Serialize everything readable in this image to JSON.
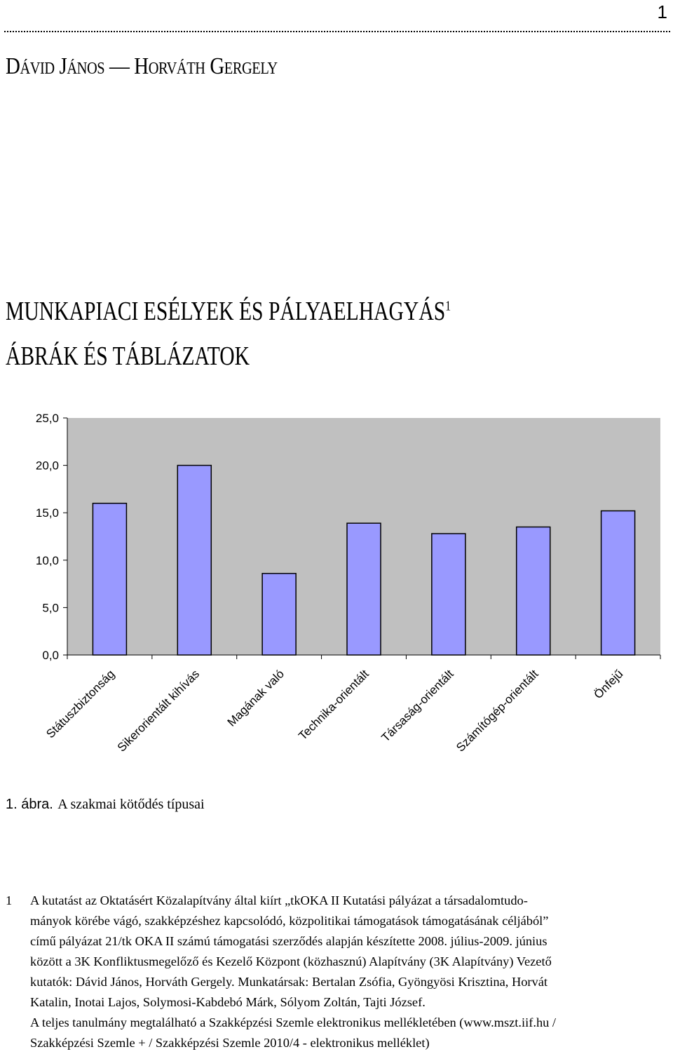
{
  "page": {
    "number": "1"
  },
  "header": {
    "authors": "Dávid János — Horváth Gergely"
  },
  "title": {
    "main": "Munkapiaci esélyek és pályaelhagyás",
    "footnote_ref": "1",
    "subtitle": "ÁBRÁK ÉS TÁBLÁZATOK"
  },
  "chart_data": {
    "type": "bar",
    "title": "",
    "categories": [
      "Státuszbiztonság",
      "Sikerorientált kihívás",
      "Magának való",
      "Technika-orientált",
      "Társaság-orientált",
      "Számítógép-orientált",
      "Önfejű"
    ],
    "values": [
      16.0,
      20.0,
      8.6,
      13.9,
      12.8,
      13.5,
      15.2
    ],
    "ylim": [
      0,
      25
    ],
    "yticks": [
      "25,0",
      "20,0",
      "15,0",
      "10,0",
      "5,0",
      "0,0"
    ],
    "ytick_values": [
      25,
      20,
      15,
      10,
      5,
      0
    ],
    "xlabel": "",
    "ylabel": "",
    "colors": {
      "plot_bg": "#c0c0c0",
      "bar": "#9999ff",
      "bar_edge": "#000000"
    }
  },
  "caption": {
    "number": "1. ábra.",
    "text": "A szakmai kötődés típusai"
  },
  "footnote": {
    "marker": "1",
    "lines": [
      "A kutatást az Oktatásért Közalapítvány által kiírt „tkOKA II Kutatási pályázat a társadalomtudo-",
      "mányok körébe vágó, szakképzéshez kapcsolódó, közpolitikai támogatások támogatásának céljából”",
      "című pályázat 21/tk OKA II számú támogatási szerződés alapján készítette 2008. július-2009. június",
      "között a 3K Konfliktusmegelőző és Kezelő Központ (közhasznú) Alapítvány (3K Alapítvány) Vezető",
      "kutatók: Dávid János, Horváth Gergely. Munkatársak: Bertalan Zsófia, Gyöngyösi Krisztina, Horvát",
      "Katalin, Inotai Lajos, Solymosi-Kabdebó Márk, Sólyom Zoltán, Tajti József.",
      "A teljes tanulmány megtalálható a Szakképzési Szemle elektronikus mellékletében (www.mszt.iif.hu /",
      "Szakképzési Szemle + / Szakképzési Szemle 2010/4 - elektronikus melléklet)"
    ]
  }
}
